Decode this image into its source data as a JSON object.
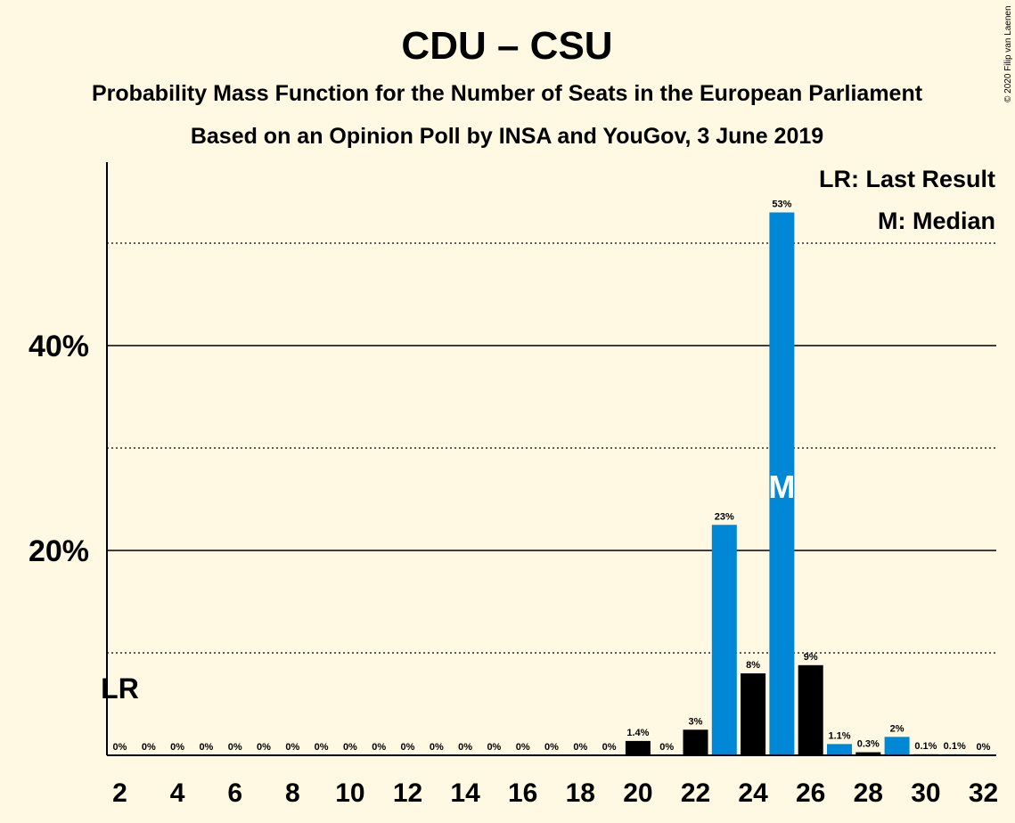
{
  "chart_data": {
    "type": "bar",
    "title": "CDU – CSU",
    "subtitle": "Probability Mass Function for the Number of Seats in the European Parliament",
    "subtitle2": "Based on an Opinion Poll by INSA and YouGov, 3 June 2019",
    "credit": "© 2020 Filip van Laenen",
    "legend": [
      "LR: Last Result",
      "M: Median"
    ],
    "legend_position": "top-right",
    "ylim": [
      0,
      58
    ],
    "yticks": [
      20,
      40
    ],
    "ytick_labels": [
      "20%",
      "40%"
    ],
    "dotted_gridlines": [
      10,
      30,
      50
    ],
    "xlim": [
      2,
      32
    ],
    "xticks": [
      2,
      4,
      6,
      8,
      10,
      12,
      14,
      16,
      18,
      20,
      22,
      24,
      26,
      28,
      30,
      32
    ],
    "x": [
      2,
      3,
      4,
      5,
      6,
      7,
      8,
      9,
      10,
      11,
      12,
      13,
      14,
      15,
      16,
      17,
      18,
      19,
      20,
      21,
      22,
      23,
      24,
      25,
      26,
      27,
      28,
      29,
      30,
      31,
      32
    ],
    "values": [
      0,
      0,
      0,
      0,
      0,
      0,
      0,
      0,
      0,
      0,
      0,
      0,
      0,
      0,
      0,
      0,
      0,
      0,
      1.4,
      0,
      2.5,
      22.5,
      8,
      53,
      8.8,
      1.1,
      0.3,
      1.8,
      0.1,
      0.1,
      0
    ],
    "labels": [
      "0%",
      "0%",
      "0%",
      "0%",
      "0%",
      "0%",
      "0%",
      "0%",
      "0%",
      "0%",
      "0%",
      "0%",
      "0%",
      "0%",
      "0%",
      "0%",
      "0%",
      "0%",
      "1.4%",
      "0%",
      "3%",
      "23%",
      "8%",
      "53%",
      "9%",
      "1.1%",
      "0.3%",
      "2%",
      "0.1%",
      "0.1%",
      "0%"
    ],
    "bar_colors": {
      "odd_seats": "#0088D6",
      "even_seats": "#000000"
    },
    "last_result_seat": 2,
    "last_result_marker": "LR",
    "median_seat": 25,
    "median_marker": "M"
  }
}
